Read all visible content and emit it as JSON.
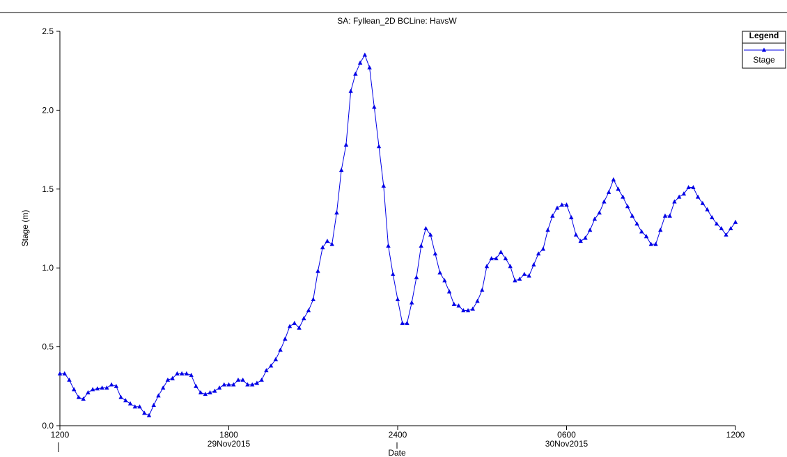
{
  "chart_data": {
    "type": "line",
    "title": "SA: Fyllean_2D BCLine: HavsW",
    "y_label": "Stage  (m)",
    "x_label": "Date",
    "legend_title": "Legend",
    "legend_position": "top-right",
    "x": [
      0,
      10,
      20,
      30,
      40,
      50,
      60,
      70,
      80,
      90,
      100,
      110,
      120,
      130,
      140,
      150,
      160,
      170,
      180,
      190,
      200,
      210,
      220,
      230,
      240,
      250,
      260,
      270,
      280,
      290,
      300,
      310,
      320,
      330,
      340,
      350,
      360,
      370,
      380,
      390,
      400,
      410,
      420,
      430,
      440,
      450,
      460,
      470,
      480,
      490,
      500,
      510,
      520,
      530,
      540,
      550,
      560,
      570,
      580,
      590,
      600,
      610,
      620,
      630,
      640,
      650,
      660,
      670,
      680,
      690,
      700,
      710,
      720,
      730,
      740,
      750,
      760,
      770,
      780,
      790,
      800,
      810,
      820,
      830,
      840,
      850,
      860,
      870,
      880,
      890,
      900,
      910,
      920,
      930,
      940,
      950,
      960,
      970,
      980,
      990,
      1000,
      1010,
      1020,
      1030,
      1040,
      1050,
      1060,
      1070,
      1080,
      1090,
      1100,
      1110,
      1120,
      1130,
      1140,
      1150,
      1160,
      1170,
      1180,
      1190,
      1200,
      1210,
      1220,
      1230,
      1240,
      1250,
      1260,
      1270,
      1280,
      1290,
      1300,
      1310,
      1320,
      1330,
      1340,
      1350,
      1360,
      1370,
      1380,
      1390,
      1400,
      1410,
      1420,
      1430,
      1440
    ],
    "series": [
      {
        "name": "Stage",
        "color": "#0000e6",
        "values": [
          0.33,
          0.33,
          0.29,
          0.23,
          0.18,
          0.17,
          0.21,
          0.23,
          0.235,
          0.24,
          0.24,
          0.26,
          0.25,
          0.18,
          0.16,
          0.14,
          0.12,
          0.12,
          0.08,
          0.065,
          0.13,
          0.19,
          0.24,
          0.29,
          0.3,
          0.33,
          0.33,
          0.33,
          0.32,
          0.25,
          0.21,
          0.2,
          0.21,
          0.22,
          0.24,
          0.26,
          0.26,
          0.26,
          0.29,
          0.29,
          0.26,
          0.26,
          0.27,
          0.29,
          0.35,
          0.38,
          0.42,
          0.48,
          0.55,
          0.63,
          0.65,
          0.62,
          0.68,
          0.73,
          0.8,
          0.98,
          1.13,
          1.17,
          1.15,
          1.35,
          1.62,
          1.78,
          2.12,
          2.23,
          2.3,
          2.35,
          2.27,
          2.02,
          1.77,
          1.52,
          1.14,
          0.96,
          0.8,
          0.65,
          0.65,
          0.78,
          0.94,
          1.14,
          1.25,
          1.21,
          1.09,
          0.97,
          0.92,
          0.85,
          0.77,
          0.76,
          0.73,
          0.73,
          0.74,
          0.79,
          0.86,
          1.01,
          1.06,
          1.06,
          1.1,
          1.06,
          1.01,
          0.92,
          0.93,
          0.96,
          0.95,
          1.02,
          1.09,
          1.12,
          1.24,
          1.33,
          1.38,
          1.4,
          1.4,
          1.32,
          1.21,
          1.17,
          1.19,
          1.24,
          1.31,
          1.35,
          1.42,
          1.48,
          1.56,
          1.5,
          1.45,
          1.39,
          1.33,
          1.28,
          1.23,
          1.2,
          1.15,
          1.15,
          1.24,
          1.33,
          1.33,
          1.42,
          1.45,
          1.47,
          1.51,
          1.51,
          1.45,
          1.41,
          1.37,
          1.32,
          1.28,
          1.25,
          1.21,
          1.25,
          1.29
        ]
      }
    ],
    "xlim": [
      0,
      1440
    ],
    "xticks": [
      {
        "value": 0,
        "label": "1200"
      },
      {
        "value": 360,
        "label": "1800"
      },
      {
        "value": 720,
        "label": "2400"
      },
      {
        "value": 1080,
        "label": "0600"
      },
      {
        "value": 1440,
        "label": "1200"
      }
    ],
    "date_labels": [
      {
        "value": 360,
        "label": "29Nov2015"
      },
      {
        "value": 1080,
        "label": "30Nov2015"
      }
    ],
    "ylim": [
      0,
      2.5
    ],
    "yticks": [
      {
        "value": 0,
        "label": "0.0"
      },
      {
        "value": 0.5,
        "label": "0.5"
      },
      {
        "value": 1,
        "label": "1.0"
      },
      {
        "value": 1.5,
        "label": "1.5"
      },
      {
        "value": 2,
        "label": "2.0"
      },
      {
        "value": 2.5,
        "label": "2.5"
      }
    ]
  }
}
